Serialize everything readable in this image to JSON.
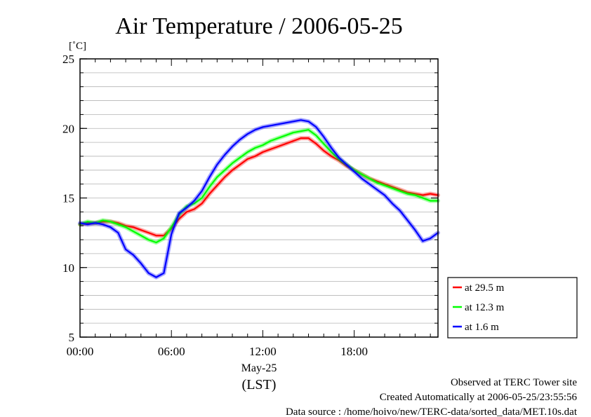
{
  "chart_data": {
    "type": "line",
    "title": "Air Temperature / 2006-05-25",
    "ylabel": "[˚C]",
    "xlabel": "(LST)",
    "date_label": "May-25",
    "x_unit": "hour of day",
    "xlim": [
      0,
      23.5
    ],
    "ylim": [
      5,
      25
    ],
    "x_ticks": [
      {
        "value": 0,
        "label": "00:00"
      },
      {
        "value": 6,
        "label": "06:00"
      },
      {
        "value": 12,
        "label": "12:00"
      },
      {
        "value": 18,
        "label": "18:00"
      }
    ],
    "y_ticks": [
      {
        "value": 5,
        "label": "5"
      },
      {
        "value": 10,
        "label": "10"
      },
      {
        "value": 15,
        "label": "15"
      },
      {
        "value": 20,
        "label": "20"
      },
      {
        "value": 25,
        "label": "25"
      }
    ],
    "grid": "horizontal",
    "legend_position": "right-bottom",
    "x": [
      0,
      0.5,
      1,
      1.5,
      2,
      2.5,
      3,
      3.5,
      4,
      4.5,
      5,
      5.5,
      6,
      6.5,
      7,
      7.5,
      8,
      8.5,
      9,
      9.5,
      10,
      10.5,
      11,
      11.5,
      12,
      12.5,
      13,
      13.5,
      14,
      14.5,
      15,
      15.5,
      16,
      16.5,
      17,
      17.5,
      18,
      18.5,
      19,
      19.5,
      20,
      20.5,
      21,
      21.5,
      22,
      22.5,
      23,
      23.5
    ],
    "series": [
      {
        "name": "at 29.5 m",
        "color": "#ff0000",
        "values": [
          13.1,
          13.2,
          13.2,
          13.3,
          13.3,
          13.2,
          13.0,
          12.9,
          12.7,
          12.5,
          12.3,
          12.3,
          12.8,
          13.5,
          14.0,
          14.2,
          14.6,
          15.3,
          15.9,
          16.5,
          17.0,
          17.4,
          17.8,
          18.0,
          18.3,
          18.5,
          18.7,
          18.9,
          19.1,
          19.3,
          19.3,
          18.9,
          18.4,
          18.0,
          17.7,
          17.3,
          17.0,
          16.7,
          16.4,
          16.2,
          16.0,
          15.8,
          15.6,
          15.4,
          15.3,
          15.2,
          15.3,
          15.2
        ]
      },
      {
        "name": "at 12.3 m",
        "color": "#00ff00",
        "values": [
          13.1,
          13.3,
          13.2,
          13.4,
          13.3,
          13.1,
          12.9,
          12.6,
          12.3,
          12.0,
          11.8,
          12.1,
          12.9,
          13.8,
          14.4,
          14.6,
          15.0,
          15.8,
          16.5,
          17.0,
          17.5,
          17.9,
          18.3,
          18.6,
          18.8,
          19.1,
          19.3,
          19.5,
          19.7,
          19.8,
          19.9,
          19.5,
          18.9,
          18.3,
          17.8,
          17.4,
          17.0,
          16.7,
          16.4,
          16.1,
          15.9,
          15.7,
          15.5,
          15.3,
          15.2,
          15.0,
          14.8,
          14.8
        ]
      },
      {
        "name": "at 1.6 m",
        "color": "#0000ff",
        "values": [
          13.2,
          13.1,
          13.2,
          13.1,
          12.9,
          12.5,
          11.3,
          10.9,
          10.3,
          9.6,
          9.3,
          9.6,
          12.4,
          13.9,
          14.3,
          14.8,
          15.5,
          16.5,
          17.4,
          18.1,
          18.7,
          19.2,
          19.6,
          19.9,
          20.1,
          20.2,
          20.3,
          20.4,
          20.5,
          20.6,
          20.5,
          20.1,
          19.4,
          18.6,
          17.9,
          17.4,
          16.9,
          16.4,
          16.0,
          15.6,
          15.2,
          14.6,
          14.1,
          13.4,
          12.7,
          11.9,
          12.1,
          12.5
        ]
      }
    ]
  },
  "footer": {
    "site": "Observed at TERC Tower site",
    "created": "Created Automatically at 2006-05-25/23:55:56",
    "source": "Data source : /home/hoivo/new/TERC-data/sorted_data/MET.10s.dat"
  }
}
